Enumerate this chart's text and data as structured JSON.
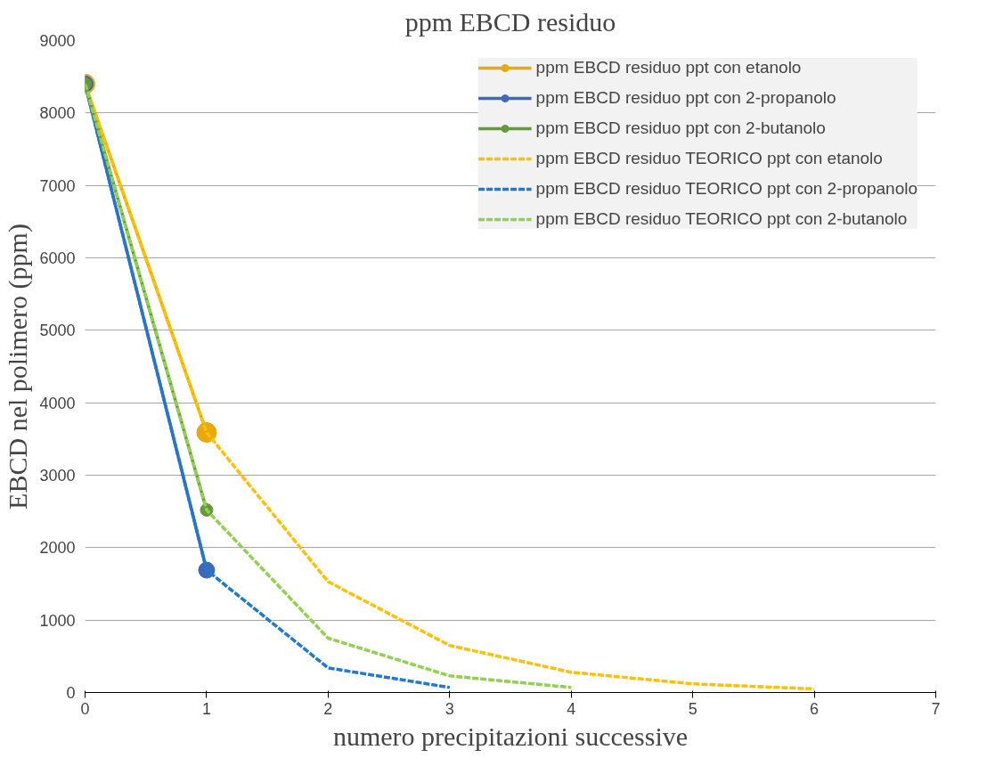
{
  "chart_data": {
    "type": "line",
    "title": "ppm EBCD residuo",
    "xlabel": "numero precipitazioni successive",
    "ylabel": "EBCD nel polimero (ppm)",
    "xlim": [
      0,
      7
    ],
    "xticks": [
      0,
      1,
      2,
      3,
      4,
      5,
      6,
      7
    ],
    "ylim": [
      0,
      9000
    ],
    "yticks": [
      0,
      1000,
      2000,
      3000,
      4000,
      5000,
      6000,
      7000,
      8000,
      9000
    ],
    "grid": "y",
    "legend": "top right",
    "series": [
      {
        "name": "ppm EBCD residuo ppt con etanolo",
        "color": "#e8a90e",
        "x": [
          0,
          1
        ],
        "values": [
          8400,
          3590
        ],
        "marker": "circle",
        "line_style": "solid"
      },
      {
        "name": "ppm EBCD residuo ppt con 2-propanolo",
        "color": "#4068b8",
        "x": [
          0,
          1
        ],
        "values": [
          8400,
          1690
        ],
        "marker": "circle",
        "line_style": "solid"
      },
      {
        "name": "ppm EBCD residuo ppt con 2-butanolo",
        "color": "#66993e",
        "x": [
          0,
          1
        ],
        "values": [
          8400,
          2520
        ],
        "marker": "circle",
        "line_style": "solid"
      },
      {
        "name": "ppm EBCD residuo TEORICO ppt con etanolo",
        "color": "#ffc000",
        "x": [
          0,
          1,
          2,
          3,
          4,
          5,
          6
        ],
        "values": [
          8400,
          3590,
          1530,
          650,
          280,
          120,
          50
        ],
        "marker": "none",
        "line_style": "dashed"
      },
      {
        "name": "ppm EBCD residuo TEORICO ppt con 2-propanolo",
        "color": "#1f78d1",
        "x": [
          0,
          1,
          2,
          3
        ],
        "values": [
          8400,
          1690,
          340,
          70
        ],
        "marker": "none",
        "line_style": "dashed"
      },
      {
        "name": "ppm EBCD residuo TEORICO ppt con 2-butanolo",
        "color": "#92d050",
        "x": [
          0,
          1,
          2,
          3,
          4
        ],
        "values": [
          8400,
          2520,
          750,
          230,
          70
        ],
        "marker": "none",
        "line_style": "dashed"
      }
    ]
  }
}
